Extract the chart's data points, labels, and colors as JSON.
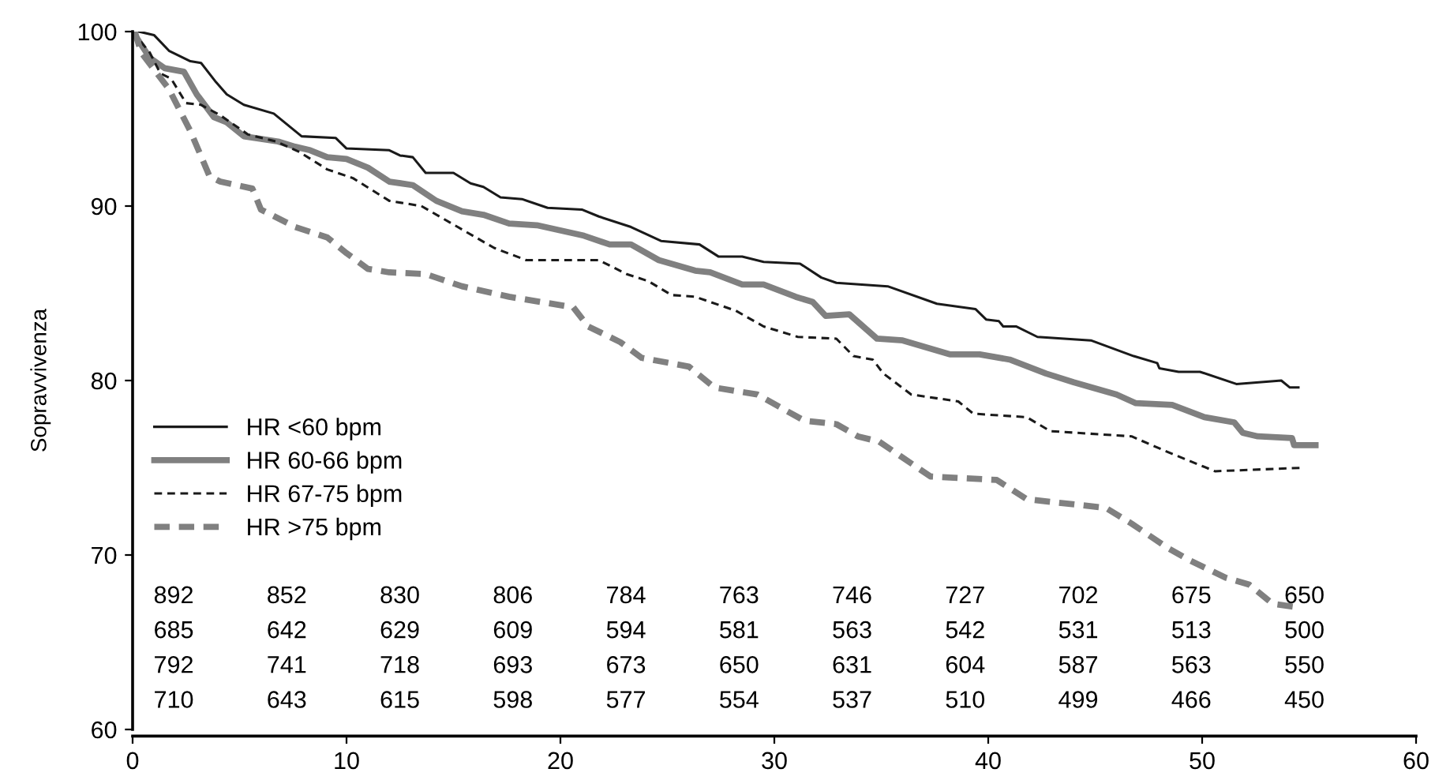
{
  "chart_data": {
    "type": "line",
    "ylabel": "Sopravvivenza",
    "xlim": [
      0,
      60
    ],
    "xticks": [
      0,
      10,
      20,
      30,
      40,
      50,
      60
    ],
    "ylim": [
      60,
      100
    ],
    "yticks": [
      60,
      70,
      80,
      90,
      100
    ],
    "grid": false,
    "legend": "bottom left",
    "marker": "none",
    "series": [
      {
        "name": "HR <60 bpm",
        "color": "#1a1a1a",
        "line_style": "solid",
        "x": [
          0.3,
          1.0,
          1.7,
          2.7,
          3.2,
          3.9,
          4.4,
          5.2,
          6.6,
          7.9,
          9.5,
          10.0,
          12.0,
          12.5,
          13.1,
          13.7,
          15.0,
          15.8,
          16.4,
          17.2,
          18.2,
          19.4,
          21.0,
          21.8,
          23.3,
          24.7,
          26.5,
          27.4,
          28.5,
          29.5,
          31.2,
          32.2,
          32.9,
          35.3,
          37.6,
          39.4,
          39.9,
          40.5,
          40.7,
          41.3,
          42.3,
          44.8,
          46.8,
          47.9,
          48.0,
          48.9,
          49.9,
          51.6,
          53.7,
          54.1,
          54.5
        ],
        "values": [
          100,
          99.8,
          98.9,
          98.3,
          98.2,
          97.1,
          96.4,
          95.8,
          95.3,
          94.0,
          93.9,
          93.3,
          93.2,
          92.9,
          92.8,
          91.9,
          91.9,
          91.3,
          91.1,
          90.5,
          90.4,
          89.9,
          89.8,
          89.4,
          88.8,
          88.0,
          87.8,
          87.1,
          87.1,
          86.8,
          86.7,
          85.9,
          85.6,
          85.4,
          84.4,
          84.1,
          83.5,
          83.4,
          83.1,
          83.1,
          82.5,
          82.3,
          81.4,
          81.0,
          80.7,
          80.5,
          80.5,
          79.8,
          80.0,
          79.6,
          79.6
        ]
      },
      {
        "name": "HR 60-66 bpm",
        "color": "#808080",
        "line_style": "solid",
        "x": [
          0,
          0.8,
          1.5,
          2.4,
          3.0,
          3.8,
          4.4,
          5.2,
          6.8,
          7.6,
          8.3,
          9.1,
          10.0,
          11.0,
          12.0,
          13.1,
          14.2,
          15.4,
          16.4,
          17.6,
          18.9,
          21.1,
          22.3,
          23.3,
          24.6,
          26.3,
          27.0,
          28.5,
          29.5,
          31.0,
          31.8,
          32.4,
          33.5,
          34.8,
          36.0,
          38.2,
          39.6,
          41.0,
          42.7,
          44.0,
          46.0,
          46.9,
          48.6,
          50.1,
          51.5,
          51.9,
          52.6,
          54.2,
          54.3,
          55.3
        ],
        "values": [
          100,
          98.5,
          97.9,
          97.7,
          96.4,
          95.1,
          94.8,
          94.0,
          93.7,
          93.4,
          93.2,
          92.8,
          92.7,
          92.2,
          91.4,
          91.2,
          90.3,
          89.7,
          89.5,
          89.0,
          88.9,
          88.3,
          87.8,
          87.8,
          86.9,
          86.3,
          86.2,
          85.5,
          85.5,
          84.8,
          84.5,
          83.7,
          83.8,
          82.4,
          82.3,
          81.5,
          81.5,
          81.2,
          80.4,
          79.9,
          79.2,
          78.7,
          78.6,
          77.9,
          77.6,
          77.0,
          76.8,
          76.7,
          76.3,
          76.3
        ]
      },
      {
        "name": "HR 67-75 bpm",
        "color": "#1a1a1a",
        "line_style": "dashed",
        "x": [
          0,
          0.8,
          1.3,
          1.8,
          2.5,
          3.2,
          4.1,
          5.4,
          6.7,
          7.8,
          9.1,
          10.3,
          12.0,
          13.5,
          15.2,
          16.9,
          18.4,
          21.8,
          23.1,
          24.1,
          25.2,
          26.3,
          28.2,
          29.5,
          31.1,
          32.9,
          33.7,
          34.6,
          35.1,
          36.4,
          38.6,
          39.3,
          41.8,
          42.9,
          46.7,
          48.4,
          50.6,
          54.7
        ],
        "values": [
          100,
          98.8,
          97.6,
          97.3,
          95.9,
          95.8,
          95.2,
          94.1,
          93.7,
          93.1,
          92.1,
          91.6,
          90.3,
          90.0,
          88.8,
          87.6,
          86.9,
          86.9,
          86.1,
          85.7,
          84.9,
          84.8,
          84.0,
          83.1,
          82.5,
          82.4,
          81.4,
          81.2,
          80.4,
          79.2,
          78.8,
          78.1,
          77.9,
          77.1,
          76.8,
          75.9,
          74.8,
          75.0
        ]
      },
      {
        "name": "HR >75 bpm",
        "color": "#808080",
        "line_style": "dashed",
        "x": [
          0.1,
          0.4,
          1.7,
          2.7,
          3.6,
          4.1,
          5.6,
          6.0,
          7.6,
          9.1,
          10.0,
          11.0,
          12.0,
          13.7,
          15.4,
          17.6,
          20.6,
          21.3,
          22.8,
          23.8,
          26.0,
          27.2,
          29.2,
          31.4,
          32.9,
          33.9,
          34.9,
          37.3,
          40.4,
          41.8,
          45.5,
          46.7,
          48.4,
          49.4,
          51.1,
          52.2,
          53.3,
          54.5
        ],
        "values": [
          100,
          98.8,
          96.7,
          94.3,
          91.7,
          91.4,
          91.0,
          89.8,
          88.8,
          88.2,
          87.3,
          86.4,
          86.2,
          86.1,
          85.4,
          84.8,
          84.2,
          83.1,
          82.2,
          81.3,
          80.8,
          79.6,
          79.2,
          77.7,
          77.5,
          76.8,
          76.5,
          74.5,
          74.3,
          73.2,
          72.7,
          71.8,
          70.4,
          69.7,
          68.7,
          68.3,
          67.2,
          67.0
        ]
      }
    ],
    "annotations": [
      "892 852 830 806 784 763 746 727 702 675 650",
      "685 642 629 609 594 581 563 542 531 513 500",
      "792 741 718 693 673 650 631 604 587 563 550",
      "710 643 615 598 577 554 537 510 499 466 450"
    ]
  }
}
